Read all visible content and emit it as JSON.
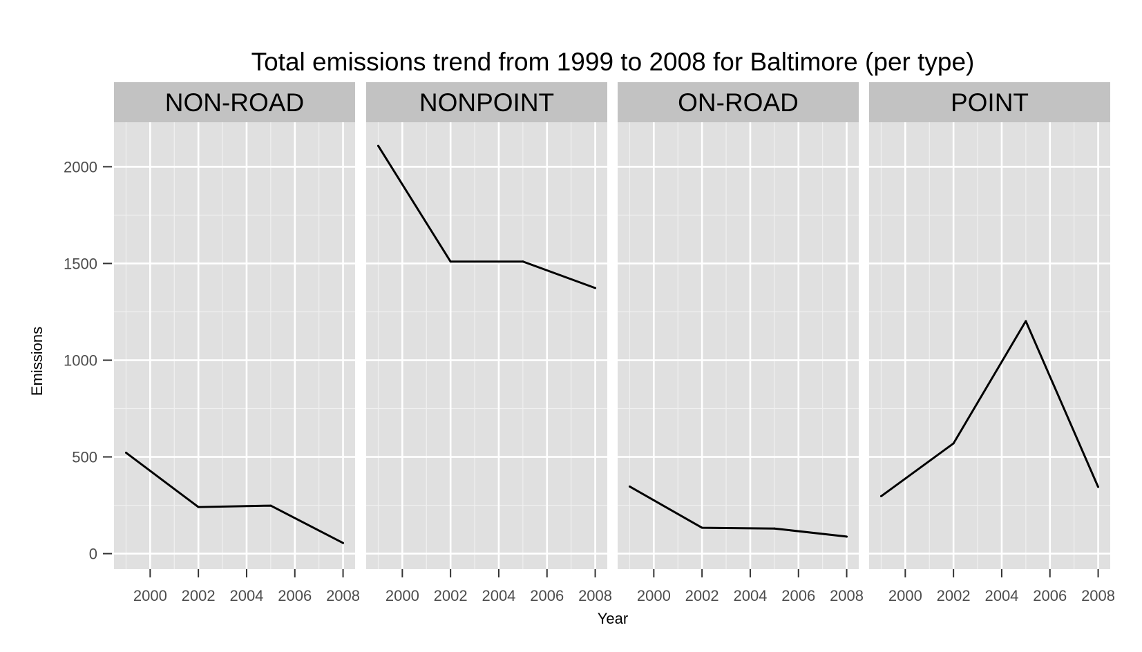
{
  "chart_data": {
    "type": "line",
    "title": "Total emissions trend from 1999 to 2008 for Baltimore (per type)",
    "xlabel": "Year",
    "ylabel": "Emissions",
    "x": [
      1999,
      2002,
      2005,
      2008
    ],
    "xlim": [
      1998.5,
      2008.5
    ],
    "ylim": [
      -80,
      2230
    ],
    "x_ticks": [
      2000,
      2002,
      2004,
      2006,
      2008
    ],
    "y_ticks": [
      0,
      500,
      1000,
      1500,
      2000
    ],
    "grid": true,
    "legend": "none",
    "facets": [
      {
        "name": "NON-ROAD",
        "values": [
          522,
          241,
          248,
          55
        ]
      },
      {
        "name": "NONPOINT",
        "values": [
          2108,
          1510,
          1510,
          1373
        ]
      },
      {
        "name": "ON-ROAD",
        "values": [
          347,
          134,
          130,
          88
        ]
      },
      {
        "name": "POINT",
        "values": [
          297,
          570,
          1202,
          345
        ]
      }
    ],
    "colors": {
      "panel": "#e0e0e0",
      "strip": "#c2c2c2",
      "grid_major": "#ffffff",
      "grid_minor": "#f0f0f0",
      "line": "#000000",
      "tick_text": "#4d4d4d"
    }
  }
}
